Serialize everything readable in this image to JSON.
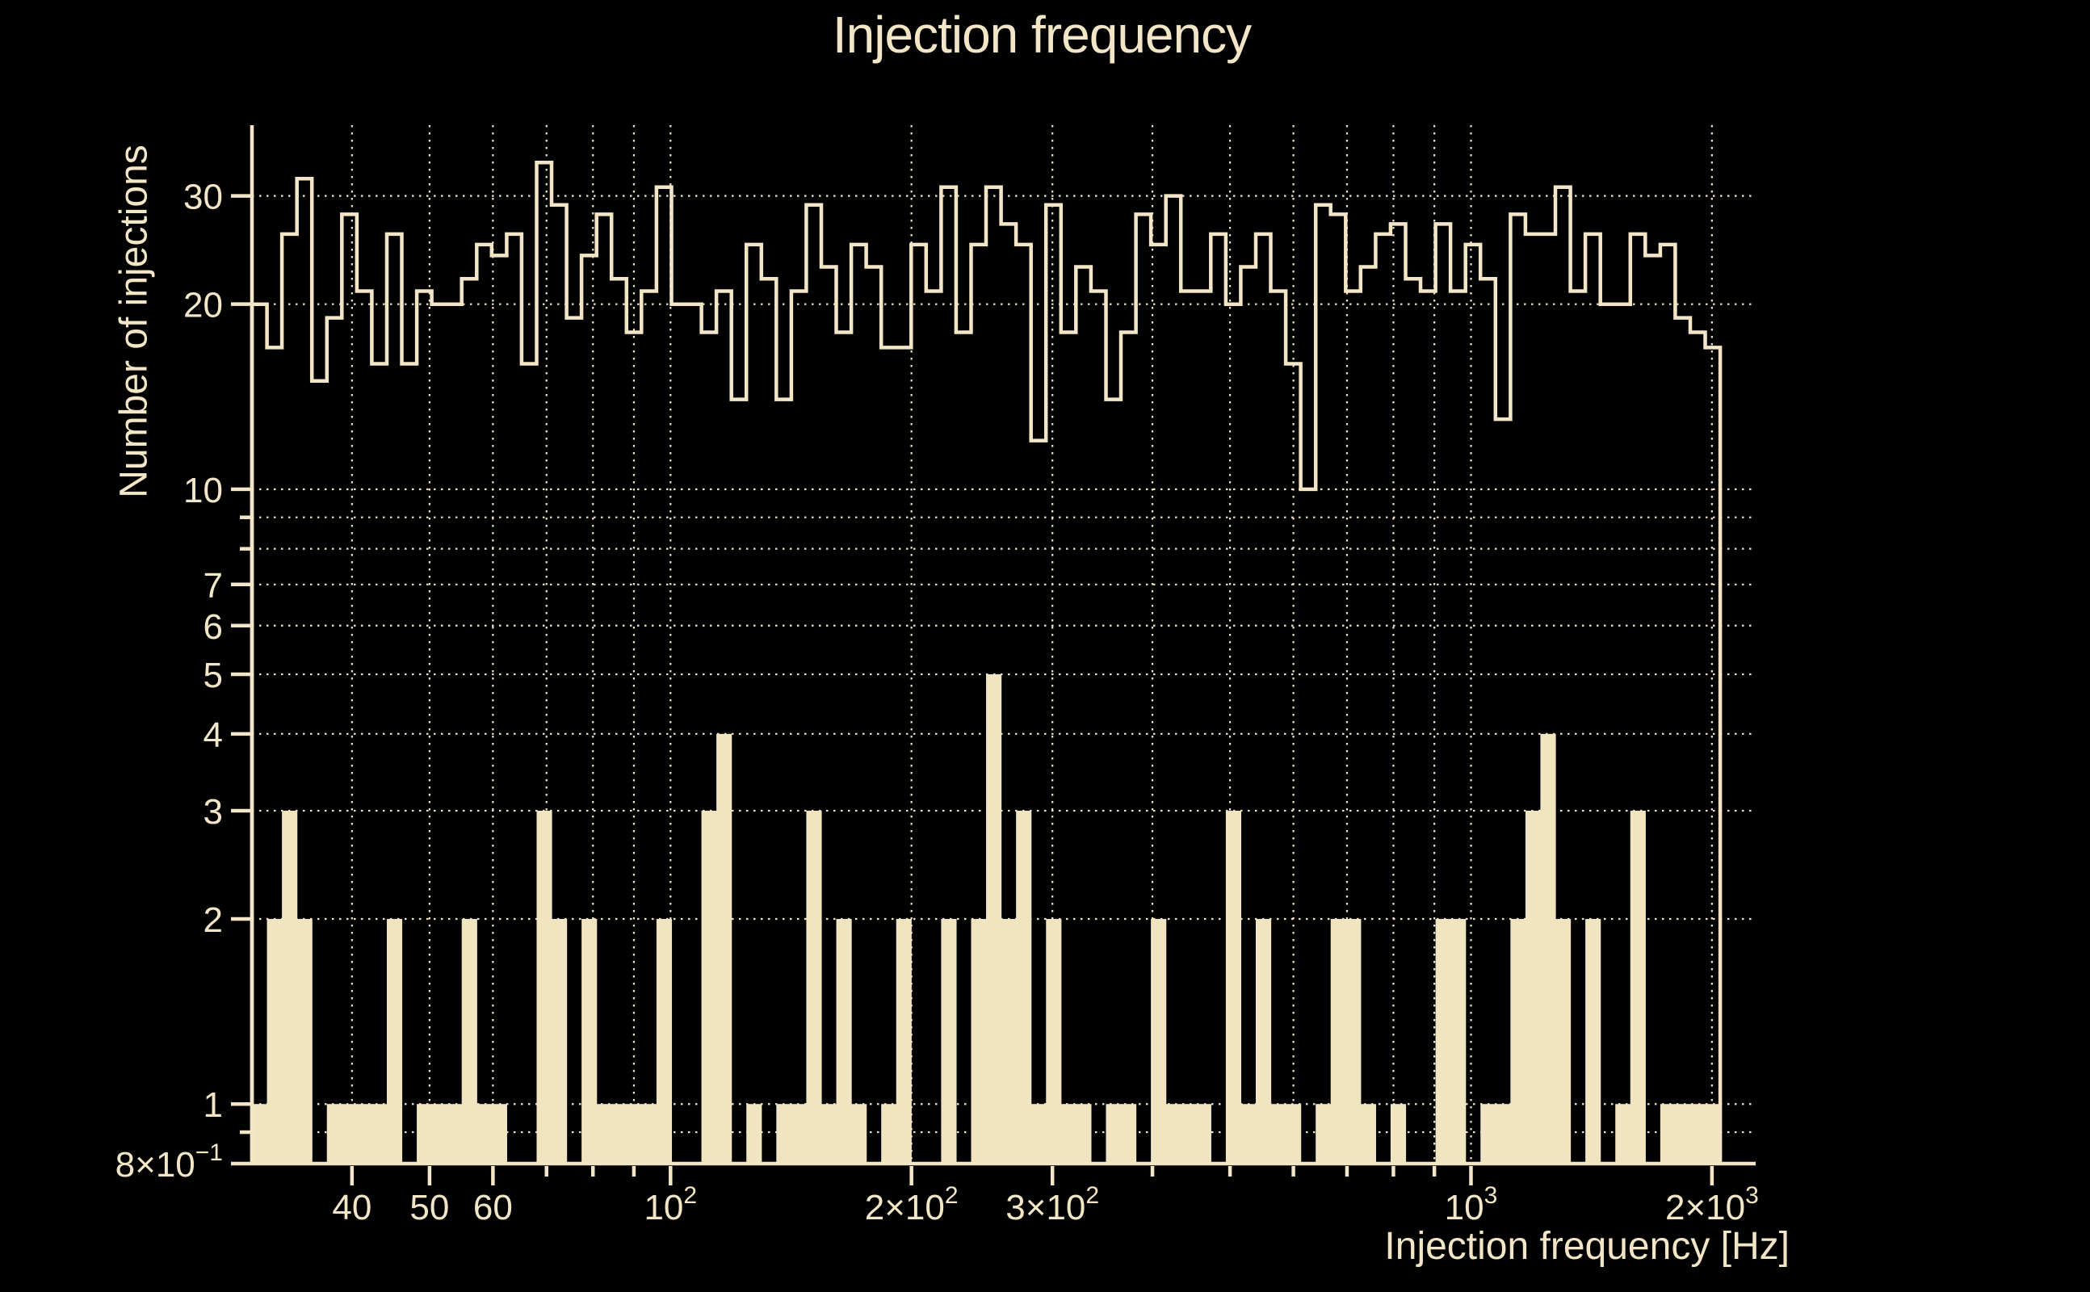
{
  "colors": {
    "background": "#000000",
    "foreground": "#f2e6c6",
    "bar_fill": "#f0e4c1"
  },
  "chart_data": {
    "type": "histogram",
    "title": "Injection frequency",
    "xlabel": "Injection frequency [Hz]",
    "ylabel": "Number of injections",
    "xscale": "log",
    "yscale": "log",
    "xlim": [
      30,
      2268
    ],
    "ylim": [
      0.8,
      39.1
    ],
    "grid": "dotted, both axes, minor and major decades",
    "bins": {
      "count": 98,
      "min_hz": 30,
      "max_hz": 2048,
      "spacing": "log"
    },
    "series": [
      {
        "name": "step-outline-histogram",
        "style": "unfilled step outline",
        "values": [
          20,
          17,
          26,
          32,
          15,
          19,
          28,
          21,
          16,
          26,
          16,
          21,
          20,
          20,
          22,
          25,
          24,
          26,
          16,
          34,
          29,
          19,
          24,
          28,
          22,
          18,
          21,
          31,
          20,
          20,
          18,
          21,
          14,
          25,
          22,
          14,
          21,
          29,
          23,
          18,
          25,
          23,
          17,
          17,
          25,
          21,
          31,
          18,
          25,
          31,
          27,
          25,
          12,
          29,
          18,
          23,
          21,
          14,
          18,
          28,
          25,
          30,
          21,
          21,
          26,
          20,
          23,
          26,
          21,
          16,
          10,
          29,
          28,
          21,
          23,
          26,
          27,
          22,
          21,
          27,
          21,
          25,
          22,
          13,
          28,
          26,
          26,
          31,
          21,
          26,
          20,
          20,
          26,
          24,
          25,
          19,
          18,
          17
        ]
      },
      {
        "name": "filled-histogram",
        "style": "filled bars",
        "values": [
          1,
          2,
          3,
          2,
          0,
          1,
          1,
          1,
          1,
          2,
          0,
          1,
          1,
          1,
          2,
          1,
          1,
          0,
          0,
          3,
          2,
          0,
          2,
          1,
          1,
          1,
          1,
          2,
          0,
          0,
          3,
          4,
          0,
          1,
          0,
          1,
          1,
          3,
          1,
          2,
          1,
          0,
          1,
          2,
          0,
          0,
          2,
          0,
          2,
          5,
          2,
          3,
          1,
          2,
          1,
          1,
          0,
          1,
          1,
          0,
          2,
          1,
          1,
          1,
          0,
          3,
          1,
          2,
          1,
          1,
          0,
          1,
          2,
          2,
          1,
          0,
          1,
          0,
          0,
          2,
          2,
          0,
          1,
          1,
          2,
          3,
          4,
          2,
          0,
          2,
          0,
          1,
          3,
          0,
          1,
          1,
          1,
          1
        ]
      }
    ],
    "x_ticks": [
      {
        "v": 40,
        "t": "40"
      },
      {
        "v": 50,
        "t": "50"
      },
      {
        "v": 60,
        "t": "60"
      },
      {
        "v": 100,
        "t": "10",
        "e": "2"
      },
      {
        "v": 200,
        "t": "2×10",
        "e": "2"
      },
      {
        "v": 300,
        "t": "3×10",
        "e": "2"
      },
      {
        "v": 1000,
        "t": "10",
        "e": "3"
      },
      {
        "v": 2000,
        "t": "2×10",
        "e": "3"
      }
    ],
    "y_ticks": [
      {
        "v": 30,
        "t": "30"
      },
      {
        "v": 20,
        "t": "20"
      },
      {
        "v": 10,
        "t": "10"
      },
      {
        "v": 7,
        "t": "7"
      },
      {
        "v": 6,
        "t": "6"
      },
      {
        "v": 5,
        "t": "5"
      },
      {
        "v": 4,
        "t": "4"
      },
      {
        "v": 3,
        "t": "3"
      },
      {
        "v": 2,
        "t": "2"
      },
      {
        "v": 1,
        "t": "1"
      },
      {
        "v": 0.8,
        "t": "8×10",
        "e": "−1"
      }
    ],
    "x_grid": [
      40,
      50,
      60,
      70,
      80,
      90,
      100,
      200,
      300,
      400,
      500,
      600,
      700,
      800,
      900,
      1000,
      2000
    ],
    "y_grid": [
      0.9,
      1,
      2,
      3,
      4,
      5,
      6,
      7,
      8,
      9,
      10,
      20,
      30
    ]
  }
}
